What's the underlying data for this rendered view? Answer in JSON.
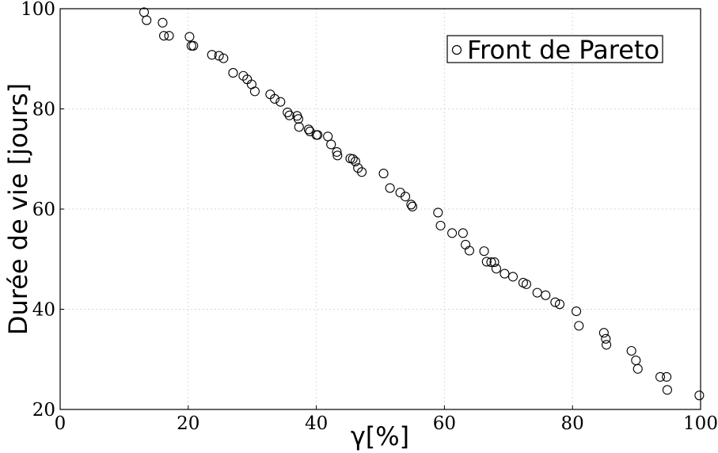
{
  "chart_data": {
    "type": "scatter",
    "title": "",
    "xlabel": "γ[%]",
    "ylabel": "Durée de vie [jours]",
    "xlim": [
      0,
      100
    ],
    "ylim": [
      20,
      100
    ],
    "x_ticks": [
      "0",
      "20",
      "40",
      "60",
      "80",
      "100"
    ],
    "y_ticks": [
      "20",
      "40",
      "60",
      "80",
      "100"
    ],
    "grid": true,
    "legend_position": "top-right",
    "marker_color": "#000000",
    "series": [
      {
        "name": "Front de Pareto",
        "marker": "open-circle",
        "x": [
          13.1,
          13.5,
          16.0,
          16.2,
          17.0,
          20.2,
          20.5,
          20.8,
          23.7,
          24.8,
          25.5,
          27.0,
          28.6,
          29.2,
          29.9,
          30.4,
          32.8,
          33.5,
          34.4,
          35.5,
          35.8,
          37.0,
          37.2,
          37.3,
          38.8,
          39.0,
          40.0,
          40.2,
          41.8,
          42.3,
          43.2,
          43.3,
          45.3,
          45.7,
          46.1,
          46.5,
          47.1,
          50.5,
          51.5,
          53.1,
          53.9,
          54.8,
          55.0,
          59.0,
          59.4,
          61.2,
          62.9,
          63.3,
          63.9,
          66.2,
          66.6,
          67.3,
          67.8,
          68.1,
          69.4,
          70.7,
          72.3,
          72.8,
          74.5,
          75.8,
          77.3,
          78.0,
          80.6,
          81.0,
          84.9,
          85.2,
          85.3,
          89.2,
          89.9,
          90.2,
          93.7,
          94.7,
          94.8,
          99.8
        ],
        "y": [
          99.3,
          97.7,
          97.2,
          94.6,
          94.6,
          94.4,
          92.6,
          92.6,
          90.8,
          90.6,
          90.1,
          87.2,
          86.6,
          85.9,
          84.9,
          83.5,
          82.9,
          82.0,
          81.4,
          79.3,
          78.7,
          78.6,
          78.0,
          76.4,
          75.9,
          75.5,
          74.8,
          74.8,
          74.5,
          72.9,
          71.4,
          70.7,
          70.1,
          70.0,
          69.5,
          68.2,
          67.4,
          67.1,
          64.2,
          63.3,
          62.5,
          60.9,
          60.5,
          59.3,
          56.7,
          55.2,
          55.2,
          52.9,
          51.7,
          51.6,
          49.5,
          49.4,
          49.4,
          48.1,
          47.1,
          46.5,
          45.3,
          45.0,
          43.3,
          42.8,
          41.4,
          41.0,
          39.6,
          36.7,
          35.3,
          34.1,
          32.9,
          31.7,
          29.8,
          28.1,
          26.5,
          26.5,
          23.9,
          22.8
        ]
      }
    ]
  }
}
